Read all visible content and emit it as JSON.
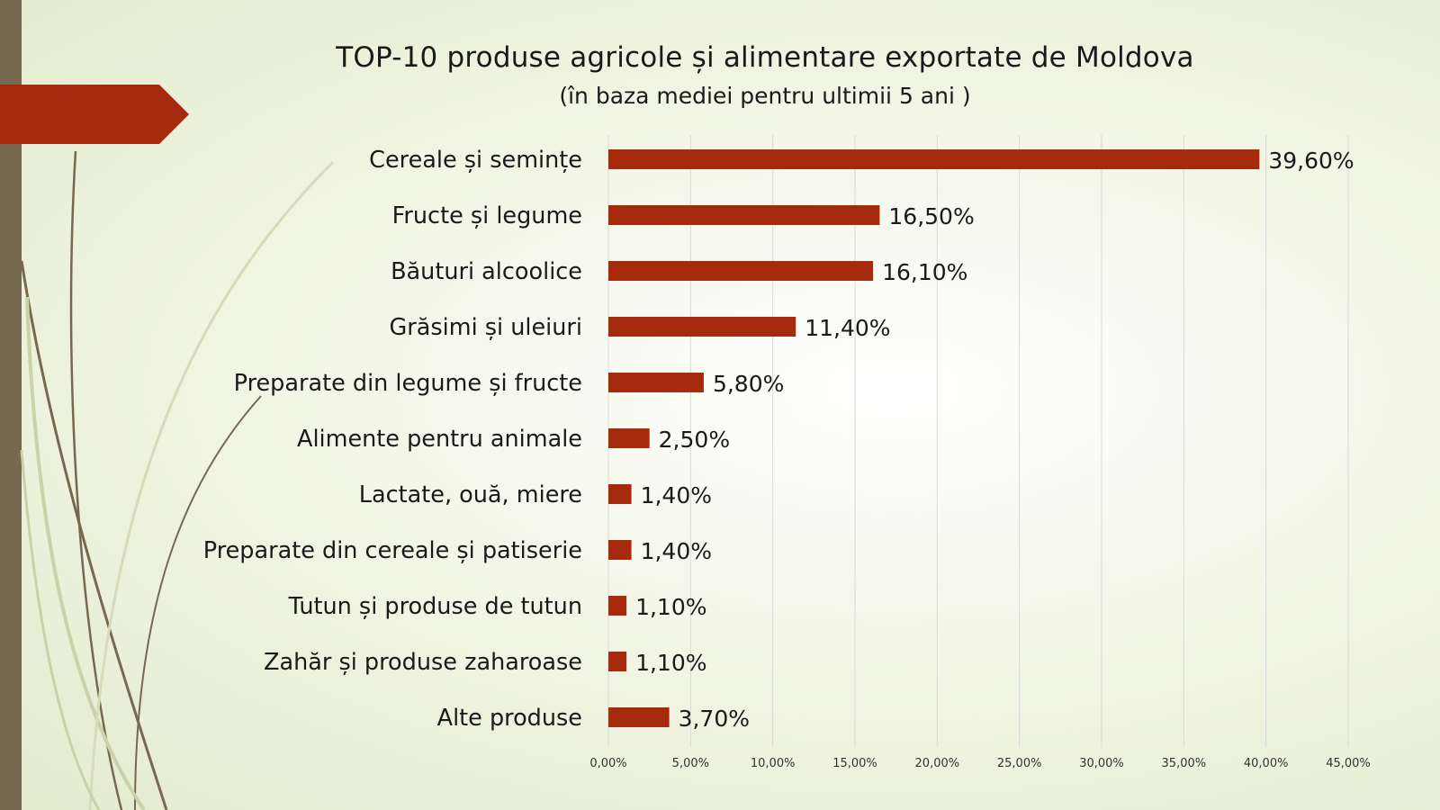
{
  "colors": {
    "bar": "#a52a0e",
    "accent": "#a52a0e",
    "left_bar": "#77694f",
    "grid": "#d9d9d9"
  },
  "chart_data": {
    "type": "bar",
    "orientation": "horizontal",
    "title": "TOP-10 produse agricole și alimentare exportate de Moldova",
    "subtitle": "(în baza mediei pentru ultimii 5 ani )",
    "categories": [
      "Cereale și semințe",
      "Fructe și legume",
      "Băuturi alcoolice",
      "Grăsimi și uleiuri",
      "Preparate din legume și fructe",
      "Alimente pentru animale",
      "Lactate, ouă, miere",
      "Preparate din cereale și patiserie",
      "Tutun și produse de tutun",
      "Zahăr și produse zaharoase",
      "Alte produse"
    ],
    "values": [
      39.6,
      16.5,
      16.1,
      11.4,
      5.8,
      2.5,
      1.4,
      1.4,
      1.1,
      1.1,
      3.7
    ],
    "data_labels": [
      "39,60%",
      "16,50%",
      "16,10%",
      "11,40%",
      "5,80%",
      "2,50%",
      "1,40%",
      "1,40%",
      "1,10%",
      "1,10%",
      "3,70%"
    ],
    "xlim": [
      0,
      45
    ],
    "x_ticks": [
      0,
      5,
      10,
      15,
      20,
      25,
      30,
      35,
      40,
      45
    ],
    "x_tick_labels": [
      "0,00%",
      "5,00%",
      "10,00%",
      "15,00%",
      "20,00%",
      "25,00%",
      "30,00%",
      "35,00%",
      "40,00%",
      "45,00%"
    ],
    "grid": true,
    "legend": false
  }
}
